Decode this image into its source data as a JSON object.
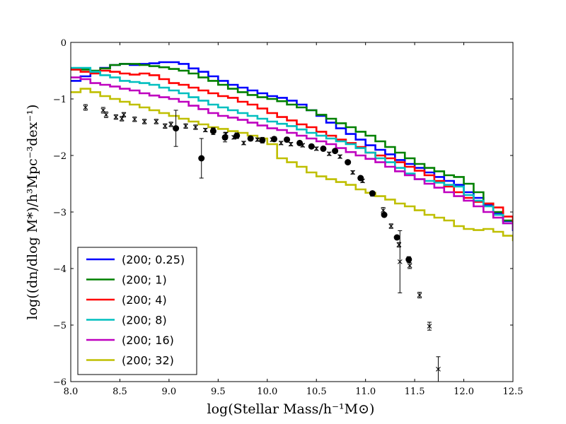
{
  "chart_data": {
    "type": "line",
    "title": "",
    "xlabel": "log(Stellar Mass/h⁻¹M⊙)",
    "ylabel": "log((dn/dlog M*)/h³Mpc⁻³dex⁻¹)",
    "xlim": [
      8.0,
      12.5
    ],
    "ylim": [
      -6,
      0
    ],
    "x_ticks": [
      "8.0",
      "8.5",
      "9.0",
      "9.5",
      "10.0",
      "10.5",
      "11.0",
      "11.5",
      "12.0",
      "12.5"
    ],
    "y_ticks": [
      "0",
      "−1",
      "−2",
      "−3",
      "−4",
      "−5",
      "−6"
    ],
    "grid": false,
    "legend_position": "lower-left",
    "step_width": 0.1,
    "x_start": 8.0,
    "series": [
      {
        "name": "(200; 0.25)",
        "color": "#0000ff",
        "values": [
          -0.68,
          -0.6,
          -0.52,
          -0.45,
          -0.4,
          -0.38,
          -0.4,
          -0.38,
          -0.37,
          -0.35,
          -0.35,
          -0.38,
          -0.46,
          -0.52,
          -0.6,
          -0.68,
          -0.75,
          -0.8,
          -0.85,
          -0.9,
          -0.95,
          -0.98,
          -1.03,
          -1.1,
          -1.2,
          -1.3,
          -1.42,
          -1.52,
          -1.62,
          -1.72,
          -1.82,
          -1.9,
          -1.98,
          -2.08,
          -2.15,
          -2.22,
          -2.3,
          -2.38,
          -2.45,
          -2.52,
          -2.65,
          -2.75,
          -2.88,
          -3.02,
          -3.16,
          -3.32,
          -3.5,
          -3.72
        ]
      },
      {
        "name": "(200; 1)",
        "color": "#008000",
        "values": [
          -0.48,
          -0.48,
          -0.5,
          -0.46,
          -0.4,
          -0.38,
          -0.38,
          -0.4,
          -0.42,
          -0.44,
          -0.47,
          -0.5,
          -0.55,
          -0.62,
          -0.68,
          -0.75,
          -0.82,
          -0.88,
          -0.93,
          -0.97,
          -1.0,
          -1.04,
          -1.1,
          -1.15,
          -1.2,
          -1.28,
          -1.35,
          -1.43,
          -1.5,
          -1.58,
          -1.65,
          -1.75,
          -1.85,
          -1.95,
          -2.05,
          -2.15,
          -2.22,
          -2.28,
          -2.35,
          -2.38,
          -2.5,
          -2.65,
          -2.85,
          -3.0,
          -3.15,
          -3.3,
          -3.45,
          -3.48
        ]
      },
      {
        "name": "(200; 4)",
        "color": "#ff0000",
        "values": [
          -0.48,
          -0.52,
          -0.55,
          -0.5,
          -0.52,
          -0.55,
          -0.57,
          -0.55,
          -0.58,
          -0.65,
          -0.72,
          -0.75,
          -0.8,
          -0.85,
          -0.9,
          -0.95,
          -0.98,
          -1.05,
          -1.1,
          -1.17,
          -1.25,
          -1.32,
          -1.38,
          -1.45,
          -1.5,
          -1.58,
          -1.65,
          -1.72,
          -1.78,
          -1.85,
          -1.95,
          -2.0,
          -2.05,
          -2.12,
          -2.2,
          -2.27,
          -2.35,
          -2.45,
          -2.55,
          -2.65,
          -2.75,
          -2.82,
          -2.85,
          -2.92,
          -3.08,
          -3.22,
          -3.35,
          -3.52
        ]
      },
      {
        "name": "(200; 8)",
        "color": "#00bfbf",
        "values": [
          -0.45,
          -0.45,
          -0.52,
          -0.58,
          -0.62,
          -0.68,
          -0.7,
          -0.72,
          -0.75,
          -0.8,
          -0.85,
          -0.9,
          -0.97,
          -1.03,
          -1.1,
          -1.15,
          -1.2,
          -1.25,
          -1.3,
          -1.35,
          -1.4,
          -1.44,
          -1.48,
          -1.54,
          -1.6,
          -1.65,
          -1.7,
          -1.75,
          -1.8,
          -1.87,
          -1.95,
          -2.05,
          -2.12,
          -2.22,
          -2.32,
          -2.42,
          -2.45,
          -2.48,
          -2.52,
          -2.55,
          -2.7,
          -2.8,
          -2.9,
          -3.05,
          -3.2,
          -3.3,
          -3.32,
          -3.42
        ]
      },
      {
        "name": "(200; 16)",
        "color": "#bf00bf",
        "values": [
          -0.62,
          -0.65,
          -0.72,
          -0.75,
          -0.78,
          -0.82,
          -0.85,
          -0.9,
          -0.94,
          -0.97,
          -1.0,
          -1.05,
          -1.12,
          -1.18,
          -1.25,
          -1.3,
          -1.33,
          -1.37,
          -1.42,
          -1.47,
          -1.52,
          -1.55,
          -1.6,
          -1.65,
          -1.7,
          -1.75,
          -1.8,
          -1.87,
          -1.94,
          -2.0,
          -2.06,
          -2.12,
          -2.2,
          -2.28,
          -2.35,
          -2.42,
          -2.5,
          -2.57,
          -2.65,
          -2.72,
          -2.8,
          -2.9,
          -3.0,
          -3.1,
          -3.2,
          -3.3,
          -3.4,
          -3.52
        ]
      },
      {
        "name": "(200; 32)",
        "color": "#bfbf00",
        "values": [
          -0.88,
          -0.82,
          -0.88,
          -0.95,
          -1.0,
          -1.05,
          -1.1,
          -1.15,
          -1.2,
          -1.25,
          -1.3,
          -1.35,
          -1.4,
          -1.45,
          -1.5,
          -1.53,
          -1.57,
          -1.6,
          -1.65,
          -1.7,
          -1.8,
          -2.05,
          -2.12,
          -2.2,
          -2.3,
          -2.37,
          -2.42,
          -2.47,
          -2.52,
          -2.6,
          -2.66,
          -2.72,
          -2.78,
          -2.85,
          -2.9,
          -2.97,
          -3.05,
          -3.1,
          -3.15,
          -3.25,
          -3.3,
          -3.32,
          -3.3,
          -3.35,
          -3.42,
          -3.5,
          -3.55,
          -3.6
        ]
      }
    ],
    "observations_circles": [
      {
        "x": 9.07,
        "y": -1.52,
        "err": 0.32
      },
      {
        "x": 9.33,
        "y": -2.05,
        "err": 0.35
      },
      {
        "x": 9.45,
        "y": -1.57,
        "err": 0.06
      },
      {
        "x": 9.57,
        "y": -1.68,
        "err": 0.08
      },
      {
        "x": 9.69,
        "y": -1.65,
        "err": 0.05
      },
      {
        "x": 9.83,
        "y": -1.7,
        "err": 0.04
      },
      {
        "x": 9.95,
        "y": -1.73,
        "err": 0.05
      },
      {
        "x": 10.07,
        "y": -1.71,
        "err": 0.04
      },
      {
        "x": 10.2,
        "y": -1.72,
        "err": 0.04
      },
      {
        "x": 10.33,
        "y": -1.78,
        "err": 0.03
      },
      {
        "x": 10.45,
        "y": -1.84,
        "err": 0.03
      },
      {
        "x": 10.57,
        "y": -1.88,
        "err": 0.03
      },
      {
        "x": 10.69,
        "y": -1.92,
        "err": 0.03
      },
      {
        "x": 10.82,
        "y": -2.12,
        "err": 0.03
      },
      {
        "x": 10.95,
        "y": -2.4,
        "err": 0.03
      },
      {
        "x": 11.07,
        "y": -2.67,
        "err": 0.03
      },
      {
        "x": 11.19,
        "y": -3.05,
        "err": 0.03
      },
      {
        "x": 11.32,
        "y": -3.45,
        "err": 0.03
      },
      {
        "x": 11.44,
        "y": -3.84,
        "err": 0.05
      }
    ],
    "observations_cross": [
      {
        "x": 8.15,
        "y": -1.15,
        "err": 0.05
      },
      {
        "x": 8.33,
        "y": -1.2,
        "err": 0.05
      },
      {
        "x": 8.36,
        "y": -1.28,
        "err": 0.05
      },
      {
        "x": 8.46,
        "y": -1.32,
        "err": 0.04
      },
      {
        "x": 8.52,
        "y": -1.35,
        "err": 0.04
      },
      {
        "x": 8.54,
        "y": -1.28,
        "err": 0.04
      },
      {
        "x": 8.65,
        "y": -1.36,
        "err": 0.04
      },
      {
        "x": 8.75,
        "y": -1.4,
        "err": 0.04
      },
      {
        "x": 8.87,
        "y": -1.4,
        "err": 0.04
      },
      {
        "x": 8.96,
        "y": -1.48,
        "err": 0.04
      },
      {
        "x": 9.02,
        "y": -1.45,
        "err": 0.04
      },
      {
        "x": 9.17,
        "y": -1.48,
        "err": 0.04
      },
      {
        "x": 9.27,
        "y": -1.5,
        "err": 0.04
      },
      {
        "x": 9.37,
        "y": -1.55,
        "err": 0.03
      },
      {
        "x": 9.45,
        "y": -1.55,
        "err": 0.03
      },
      {
        "x": 9.58,
        "y": -1.62,
        "err": 0.03
      },
      {
        "x": 9.66,
        "y": -1.68,
        "err": 0.03
      },
      {
        "x": 9.76,
        "y": -1.78,
        "err": 0.03
      },
      {
        "x": 9.9,
        "y": -1.72,
        "err": 0.03
      },
      {
        "x": 10.05,
        "y": -1.72,
        "err": 0.03
      },
      {
        "x": 10.14,
        "y": -1.78,
        "err": 0.03
      },
      {
        "x": 10.24,
        "y": -1.8,
        "err": 0.03
      },
      {
        "x": 10.36,
        "y": -1.82,
        "err": 0.03
      },
      {
        "x": 10.5,
        "y": -1.88,
        "err": 0.03
      },
      {
        "x": 10.63,
        "y": -1.97,
        "err": 0.03
      },
      {
        "x": 10.74,
        "y": -2.02,
        "err": 0.03
      },
      {
        "x": 10.87,
        "y": -2.3,
        "err": 0.03
      },
      {
        "x": 10.97,
        "y": -2.45,
        "err": 0.03
      },
      {
        "x": 11.07,
        "y": -2.68,
        "err": 0.04
      },
      {
        "x": 11.18,
        "y": -2.97,
        "err": 0.05
      },
      {
        "x": 11.26,
        "y": -3.25,
        "err": 0.04
      },
      {
        "x": 11.34,
        "y": -3.58,
        "err": 0.04
      },
      {
        "x": 11.35,
        "y": -3.88,
        "err": 0.55
      },
      {
        "x": 11.45,
        "y": -3.95,
        "err": 0.05
      },
      {
        "x": 11.55,
        "y": -4.47,
        "err": 0.05
      },
      {
        "x": 11.65,
        "y": -5.02,
        "err": 0.07
      },
      {
        "x": 11.74,
        "y": -5.78,
        "err": 0.22
      }
    ]
  }
}
